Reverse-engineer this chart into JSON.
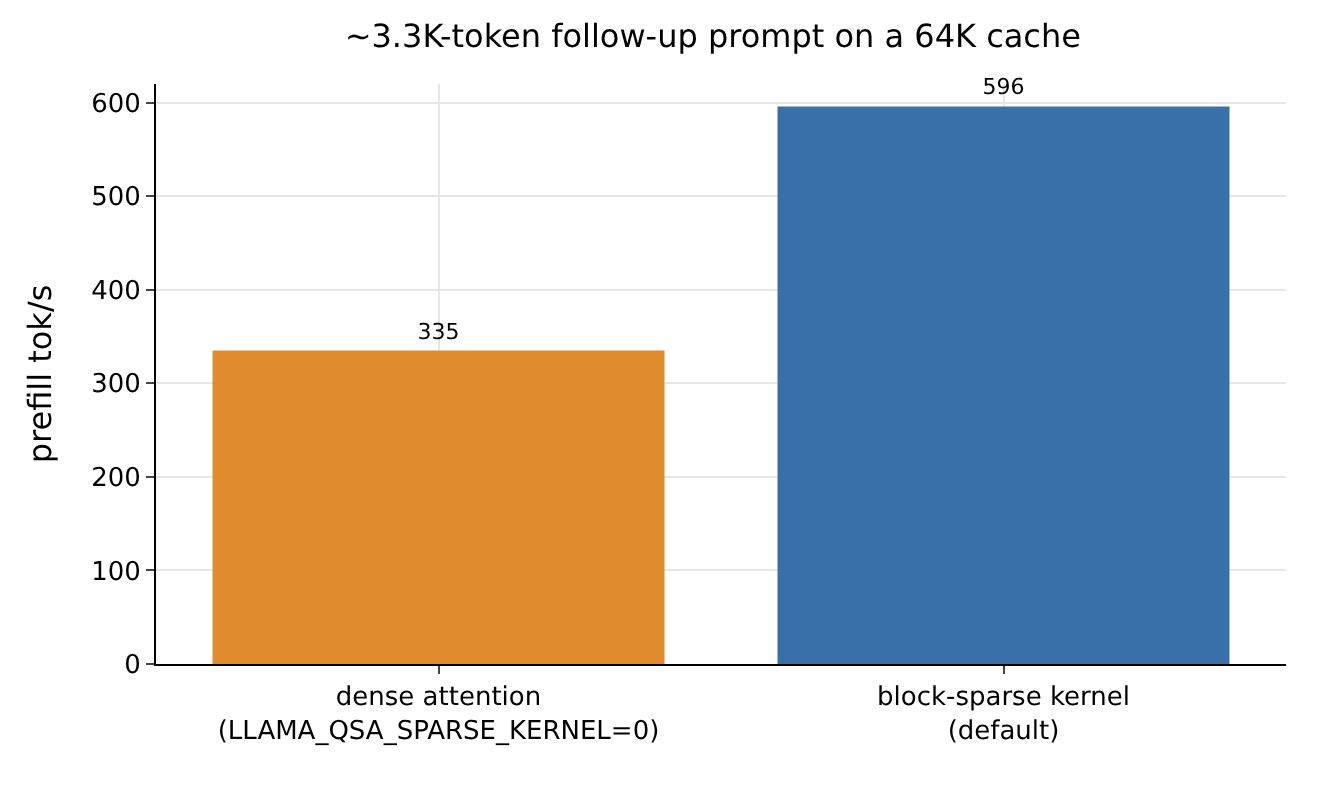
{
  "chart_data": {
    "type": "bar",
    "title": "~3.3K-token follow-up prompt on a 64K cache",
    "ylabel": "prefill tok/s",
    "categories": [
      "dense attention\n(LLAMA_QSA_SPARSE_KERNEL=0)",
      "block-sparse kernel\n(default)"
    ],
    "values": [
      335,
      596
    ],
    "colors": [
      "#e08b2e",
      "#3a70aa"
    ],
    "ylim": [
      0,
      620
    ],
    "yticks": [
      0,
      100,
      200,
      300,
      400,
      500,
      600
    ],
    "grid": true,
    "data_labels": true
  }
}
